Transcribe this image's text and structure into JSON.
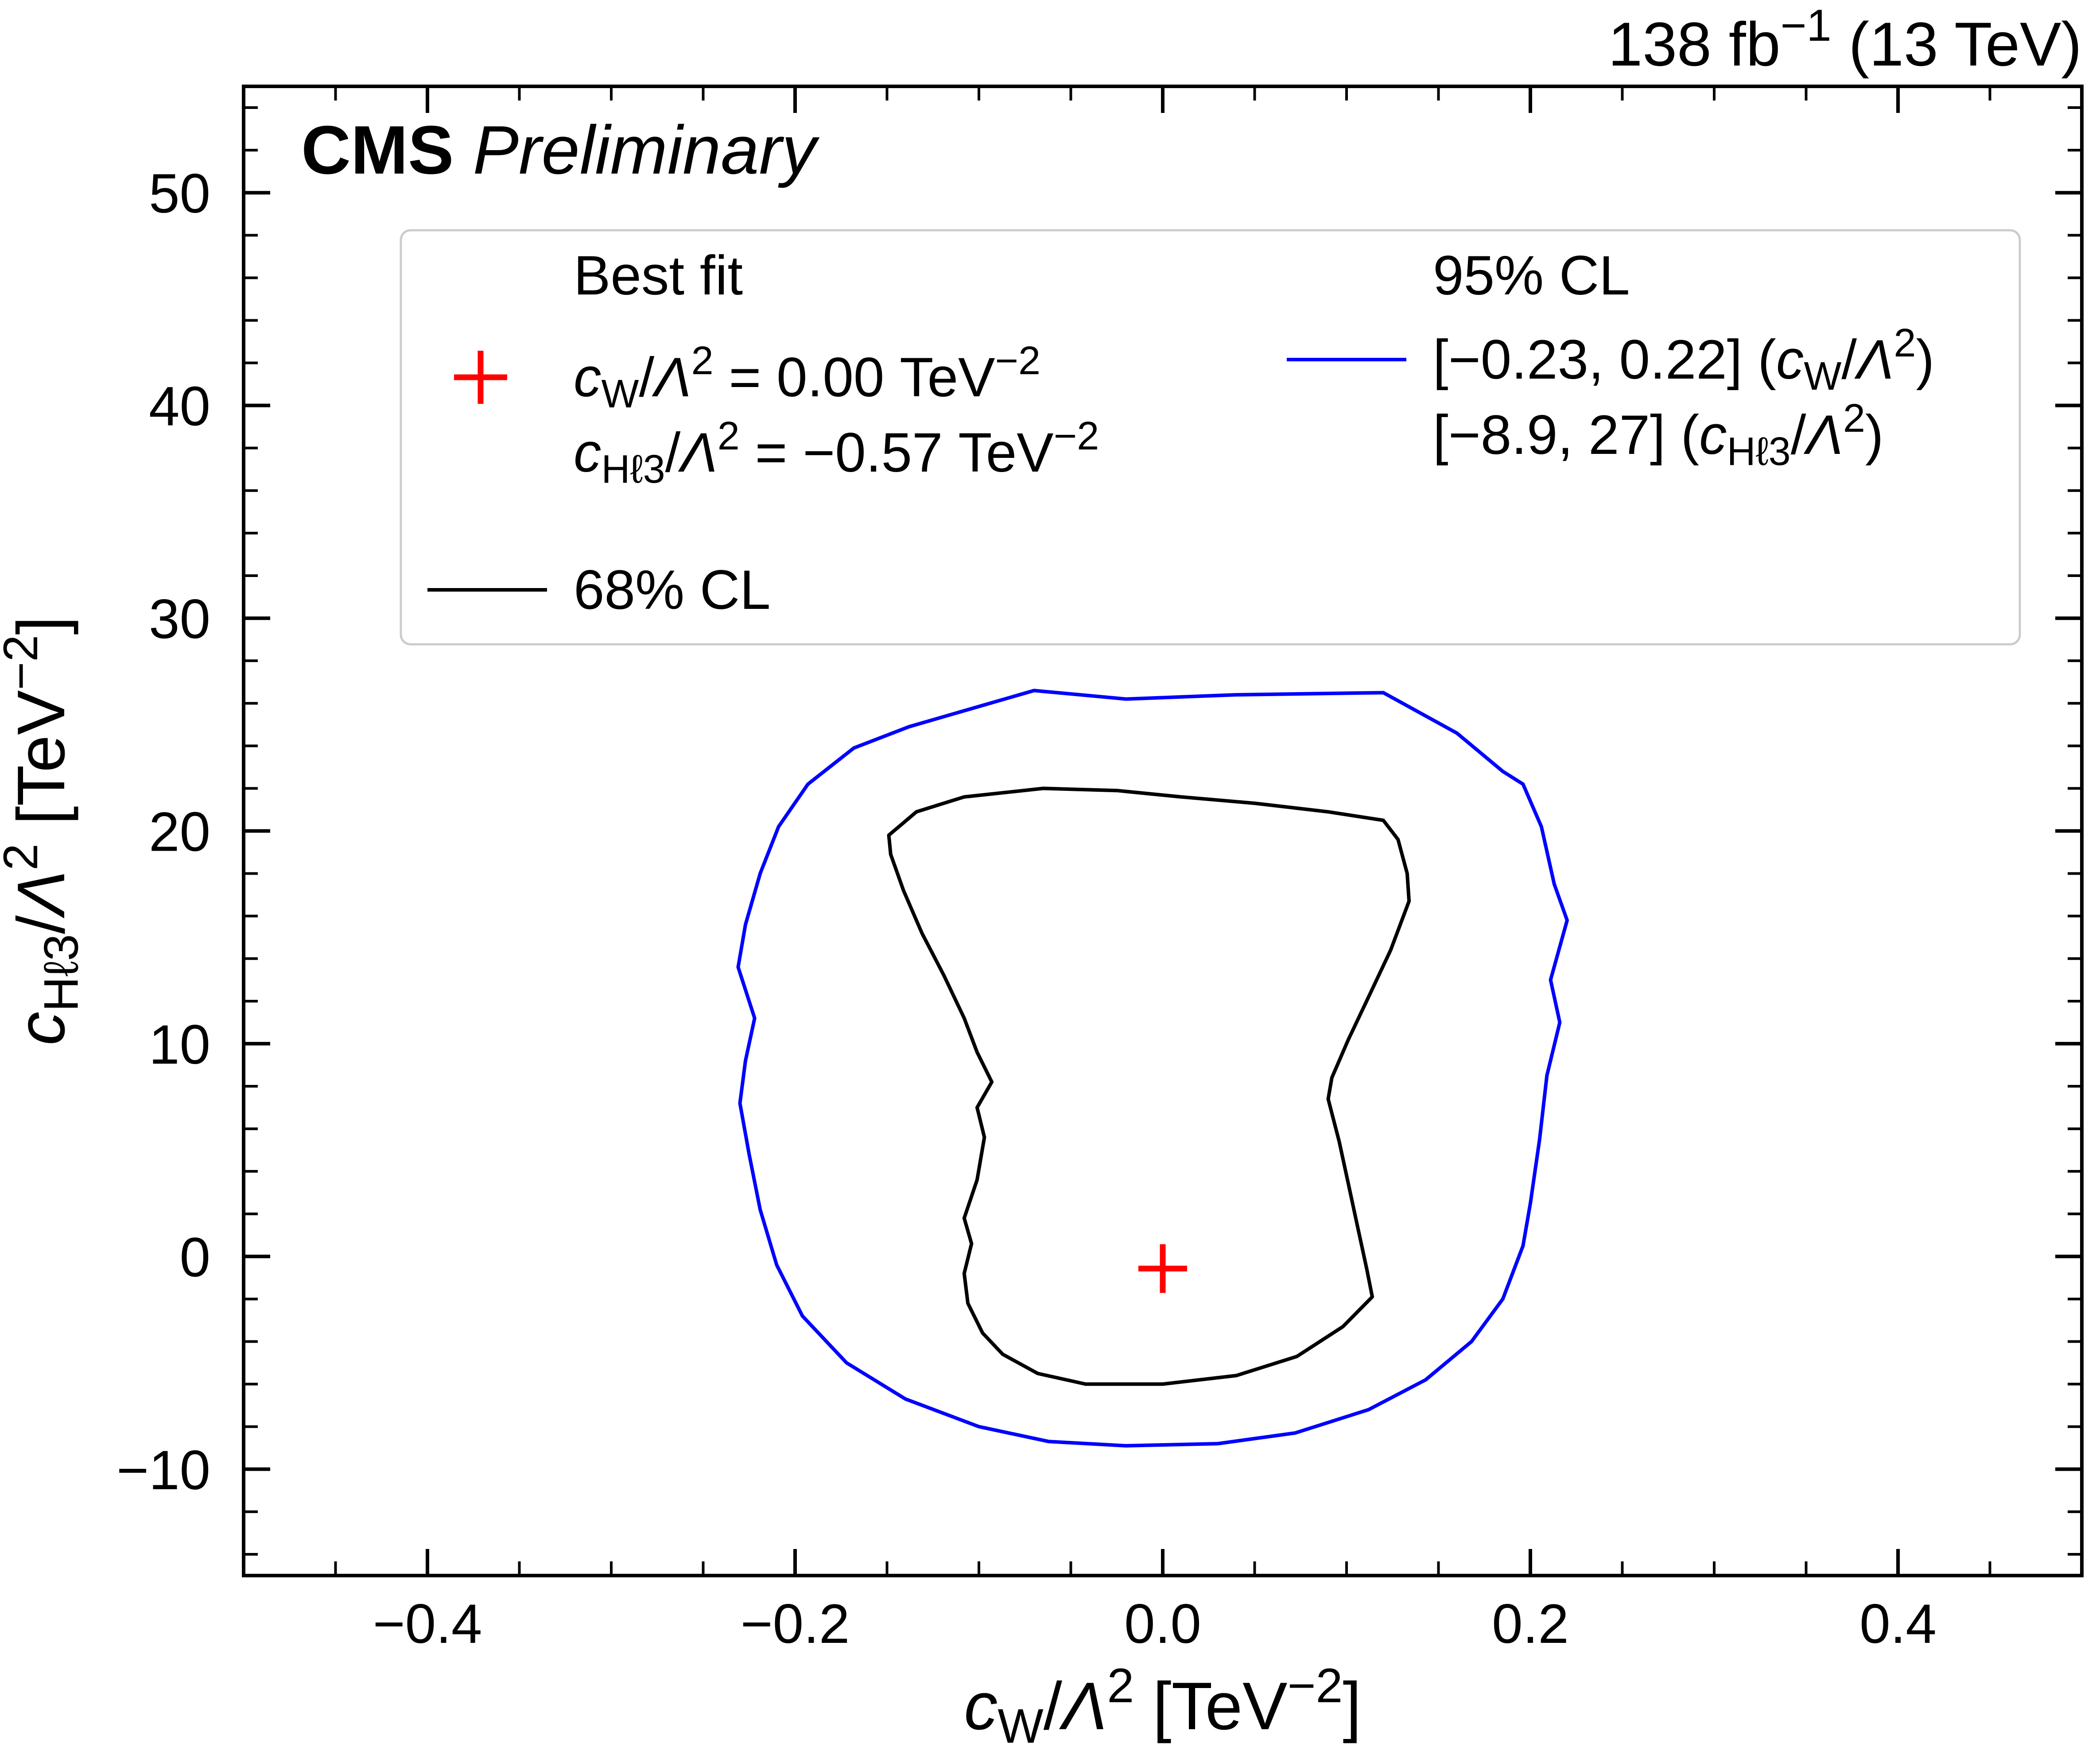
{
  "header": {
    "lumi": {
      "text": "138 fb⁻¹ (13 TeV)",
      "parts": [
        {
          "t": "138 fb"
        },
        {
          "t": "−1",
          "s": "sup"
        },
        {
          "t": " (13 TeV)"
        }
      ]
    },
    "cms": {
      "text": "CMS Preliminary",
      "parts": [
        {
          "t": "CMS",
          "s": "b"
        },
        {
          "t": " "
        },
        {
          "t": "Preliminary",
          "s": "i"
        }
      ]
    }
  },
  "labels": {
    "x_axis": {
      "text": "cW/Λ² [TeV⁻²]",
      "parts": [
        {
          "t": "c",
          "s": "i"
        },
        {
          "t": "W",
          "s": "sub"
        },
        {
          "t": "/"
        },
        {
          "t": "Λ",
          "s": "i"
        },
        {
          "t": "2",
          "s": "sup"
        },
        {
          "t": " [TeV"
        },
        {
          "t": "−2",
          "s": "sup"
        },
        {
          "t": "]"
        }
      ]
    },
    "y_axis": {
      "text": "cHℓ3/Λ² [TeV⁻²]",
      "parts": [
        {
          "t": "c",
          "s": "i"
        },
        {
          "t": "Hℓ3",
          "s": "sub"
        },
        {
          "t": "/"
        },
        {
          "t": "Λ",
          "s": "i"
        },
        {
          "t": "2",
          "s": "sup"
        },
        {
          "t": " [TeV"
        },
        {
          "t": "−2",
          "s": "sup"
        },
        {
          "t": "]"
        }
      ]
    }
  },
  "legend": {
    "best_fit": {
      "title": "Best fit",
      "marker_color": "#ff0000",
      "line1_text": "cW/Λ² = 0.00 TeV⁻²",
      "line1_parts": [
        {
          "t": "c",
          "s": "i"
        },
        {
          "t": "W",
          "s": "sub"
        },
        {
          "t": "/"
        },
        {
          "t": "Λ",
          "s": "i"
        },
        {
          "t": "2",
          "s": "sup"
        },
        {
          "t": " = 0.00 TeV"
        },
        {
          "t": "−2",
          "s": "sup"
        }
      ],
      "line2_text": "cHℓ3/Λ² = −0.57 TeV⁻²",
      "line2_parts": [
        {
          "t": "c",
          "s": "i"
        },
        {
          "t": "Hℓ3",
          "s": "sub"
        },
        {
          "t": "/"
        },
        {
          "t": "Λ",
          "s": "i"
        },
        {
          "t": "2",
          "s": "sup"
        },
        {
          "t": " = −0.57 TeV"
        },
        {
          "t": "−2",
          "s": "sup"
        }
      ]
    },
    "cl68": {
      "label": "68% CL",
      "color": "#000000"
    },
    "cl95": {
      "title": "95% CL",
      "color": "#0000ff",
      "line1_text": "[−0.23, 0.22] (cW/Λ²)",
      "line1_parts": [
        {
          "t": "[−0.23, 0.22] ("
        },
        {
          "t": "c",
          "s": "i"
        },
        {
          "t": "W",
          "s": "sub"
        },
        {
          "t": "/"
        },
        {
          "t": "Λ",
          "s": "i"
        },
        {
          "t": "2",
          "s": "sup"
        },
        {
          "t": ")"
        }
      ],
      "line2_text": "[−8.9, 27] (cHℓ3/Λ²)",
      "line2_parts": [
        {
          "t": "[−8.9, 27] ("
        },
        {
          "t": "c",
          "s": "i"
        },
        {
          "t": "Hℓ3",
          "s": "sub"
        },
        {
          "t": "/"
        },
        {
          "t": "Λ",
          "s": "i"
        },
        {
          "t": "2",
          "s": "sup"
        },
        {
          "t": ")"
        }
      ]
    }
  },
  "chart_data": {
    "type": "line",
    "subtype": "2d-confidence-contours",
    "title": "CMS Preliminary, 138 fb⁻¹ (13 TeV)",
    "xlabel": "cW/Λ² [TeV⁻²]",
    "ylabel": "cHℓ3/Λ² [TeV⁻²]",
    "xlim": [
      -0.5,
      0.5
    ],
    "ylim": [
      -15,
      55
    ],
    "x_ticks": [
      -0.4,
      -0.2,
      0,
      0.2,
      0.4
    ],
    "x_tick_labels": [
      "−0.4",
      "−0.2",
      "0.0",
      "0.2",
      "0.4"
    ],
    "y_ticks": [
      -10,
      0,
      10,
      20,
      30,
      40,
      50
    ],
    "y_tick_labels": [
      "−10",
      "0",
      "10",
      "20",
      "30",
      "40",
      "50"
    ],
    "grid": false,
    "legend_position": "upper-center-inside",
    "best_fit": {
      "x": 0.0,
      "y": -0.57,
      "color": "#ff0000",
      "marker": "plus"
    },
    "cl95_intervals": {
      "cW": [
        -0.23,
        0.22
      ],
      "cHl3": [
        -8.9,
        27
      ]
    },
    "series": [
      {
        "name": "68% CL",
        "color": "#000000",
        "points": [
          [
            -0.065,
            22.0
          ],
          [
            -0.025,
            21.9
          ],
          [
            0.01,
            21.6
          ],
          [
            0.05,
            21.3
          ],
          [
            0.09,
            20.9
          ],
          [
            0.12,
            20.5
          ],
          [
            0.128,
            19.6
          ],
          [
            0.133,
            18.0
          ],
          [
            0.134,
            16.7
          ],
          [
            0.124,
            14.4
          ],
          [
            0.112,
            12.2
          ],
          [
            0.101,
            10.2
          ],
          [
            0.092,
            8.4
          ],
          [
            0.09,
            7.4
          ],
          [
            0.096,
            5.4
          ],
          [
            0.101,
            3.4
          ],
          [
            0.106,
            1.4
          ],
          [
            0.111,
            -0.6
          ],
          [
            0.114,
            -1.9
          ],
          [
            0.098,
            -3.3
          ],
          [
            0.073,
            -4.7
          ],
          [
            0.04,
            -5.6
          ],
          [
            0.0,
            -6.0
          ],
          [
            -0.042,
            -6.0
          ],
          [
            -0.068,
            -5.5
          ],
          [
            -0.087,
            -4.6
          ],
          [
            -0.098,
            -3.6
          ],
          [
            -0.106,
            -2.2
          ],
          [
            -0.108,
            -0.8
          ],
          [
            -0.104,
            0.6
          ],
          [
            -0.108,
            1.8
          ],
          [
            -0.101,
            3.6
          ],
          [
            -0.097,
            5.6
          ],
          [
            -0.101,
            7.0
          ],
          [
            -0.093,
            8.2
          ],
          [
            -0.101,
            9.6
          ],
          [
            -0.108,
            11.2
          ],
          [
            -0.119,
            13.2
          ],
          [
            -0.131,
            15.2
          ],
          [
            -0.141,
            17.2
          ],
          [
            -0.148,
            18.9
          ],
          [
            -0.149,
            19.8
          ],
          [
            -0.134,
            20.9
          ],
          [
            -0.108,
            21.6
          ],
          [
            -0.065,
            22.0
          ]
        ]
      },
      {
        "name": "95% CL",
        "color": "#0000ff",
        "points": [
          [
            -0.07,
            26.6
          ],
          [
            -0.02,
            26.2
          ],
          [
            0.04,
            26.4
          ],
          [
            0.12,
            26.5
          ],
          [
            0.16,
            24.6
          ],
          [
            0.185,
            22.8
          ],
          [
            0.196,
            22.2
          ],
          [
            0.206,
            20.2
          ],
          [
            0.213,
            17.5
          ],
          [
            0.22,
            15.8
          ],
          [
            0.211,
            13.0
          ],
          [
            0.216,
            11.0
          ],
          [
            0.209,
            8.5
          ],
          [
            0.205,
            5.5
          ],
          [
            0.2,
            2.5
          ],
          [
            0.196,
            0.5
          ],
          [
            0.185,
            -2.0
          ],
          [
            0.168,
            -4.0
          ],
          [
            0.143,
            -5.8
          ],
          [
            0.112,
            -7.2
          ],
          [
            0.072,
            -8.3
          ],
          [
            0.03,
            -8.8
          ],
          [
            -0.02,
            -8.9
          ],
          [
            -0.062,
            -8.7
          ],
          [
            -0.1,
            -8.0
          ],
          [
            -0.14,
            -6.7
          ],
          [
            -0.172,
            -5.0
          ],
          [
            -0.196,
            -2.8
          ],
          [
            -0.21,
            -0.4
          ],
          [
            -0.219,
            2.2
          ],
          [
            -0.225,
            4.8
          ],
          [
            -0.23,
            7.2
          ],
          [
            -0.227,
            9.2
          ],
          [
            -0.222,
            11.2
          ],
          [
            -0.231,
            13.6
          ],
          [
            -0.227,
            15.6
          ],
          [
            -0.219,
            18.0
          ],
          [
            -0.209,
            20.2
          ],
          [
            -0.193,
            22.2
          ],
          [
            -0.168,
            23.9
          ],
          [
            -0.138,
            24.9
          ],
          [
            -0.098,
            25.9
          ],
          [
            -0.07,
            26.6
          ]
        ]
      }
    ]
  }
}
